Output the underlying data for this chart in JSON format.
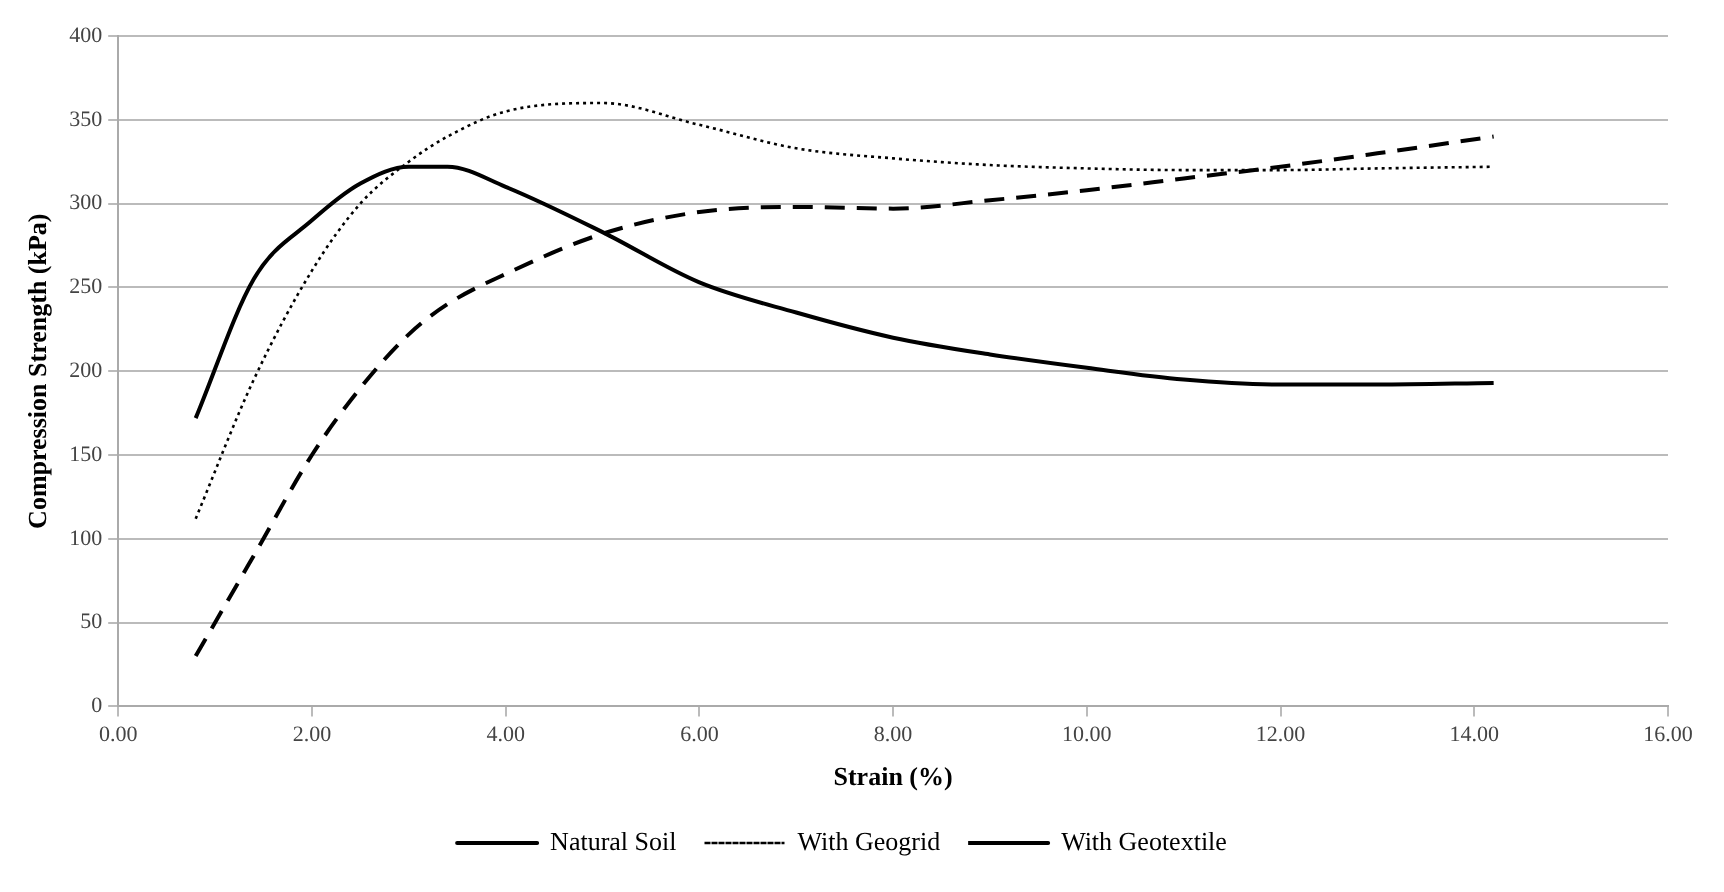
{
  "chart_data": {
    "type": "line",
    "xlabel": "Strain (%)",
    "ylabel": "Compression Strength (kPa)",
    "xlim": [
      0,
      16
    ],
    "xticks": [
      {
        "value": 0,
        "label": "0.00"
      },
      {
        "value": 2,
        "label": "2.00"
      },
      {
        "value": 4,
        "label": "4.00"
      },
      {
        "value": 6,
        "label": "6.00"
      },
      {
        "value": 8,
        "label": "8.00"
      },
      {
        "value": 10,
        "label": "10.00"
      },
      {
        "value": 12,
        "label": "12.00"
      },
      {
        "value": 14,
        "label": "14.00"
      },
      {
        "value": 16,
        "label": "16.00"
      }
    ],
    "ylim": [
      0,
      400
    ],
    "yticks": [
      0,
      50,
      100,
      150,
      200,
      250,
      300,
      350,
      400
    ],
    "grid": "y",
    "legend": "bottom",
    "marker": "none",
    "x": [
      0.8,
      1.4,
      2.0,
      2.5,
      3.0,
      3.4,
      4.0,
      5.0,
      6.0,
      7.0,
      8.0,
      9.0,
      10.0,
      11.0,
      12.0,
      13.0,
      14.2
    ],
    "series": [
      {
        "name": "Natural Soil",
        "color": "#000000",
        "line_style": "solid",
        "values": [
          172,
          255,
          290,
          312,
          322,
          322,
          310,
          283,
          253,
          235,
          220,
          210,
          202,
          195,
          192,
          192,
          193
        ]
      },
      {
        "name": "With Geogrid",
        "color": "#000000",
        "line_style": "dotted",
        "values": [
          112,
          195,
          260,
          300,
          325,
          340,
          355,
          360,
          347,
          333,
          327,
          323,
          321,
          320,
          320,
          321,
          322
        ]
      },
      {
        "name": "With Geotextile",
        "color": "#000000",
        "line_style": "dashed",
        "values": [
          30,
          90,
          150,
          190,
          222,
          240,
          258,
          282,
          295,
          298,
          297,
          302,
          308,
          315,
          322,
          330,
          340
        ]
      }
    ]
  }
}
